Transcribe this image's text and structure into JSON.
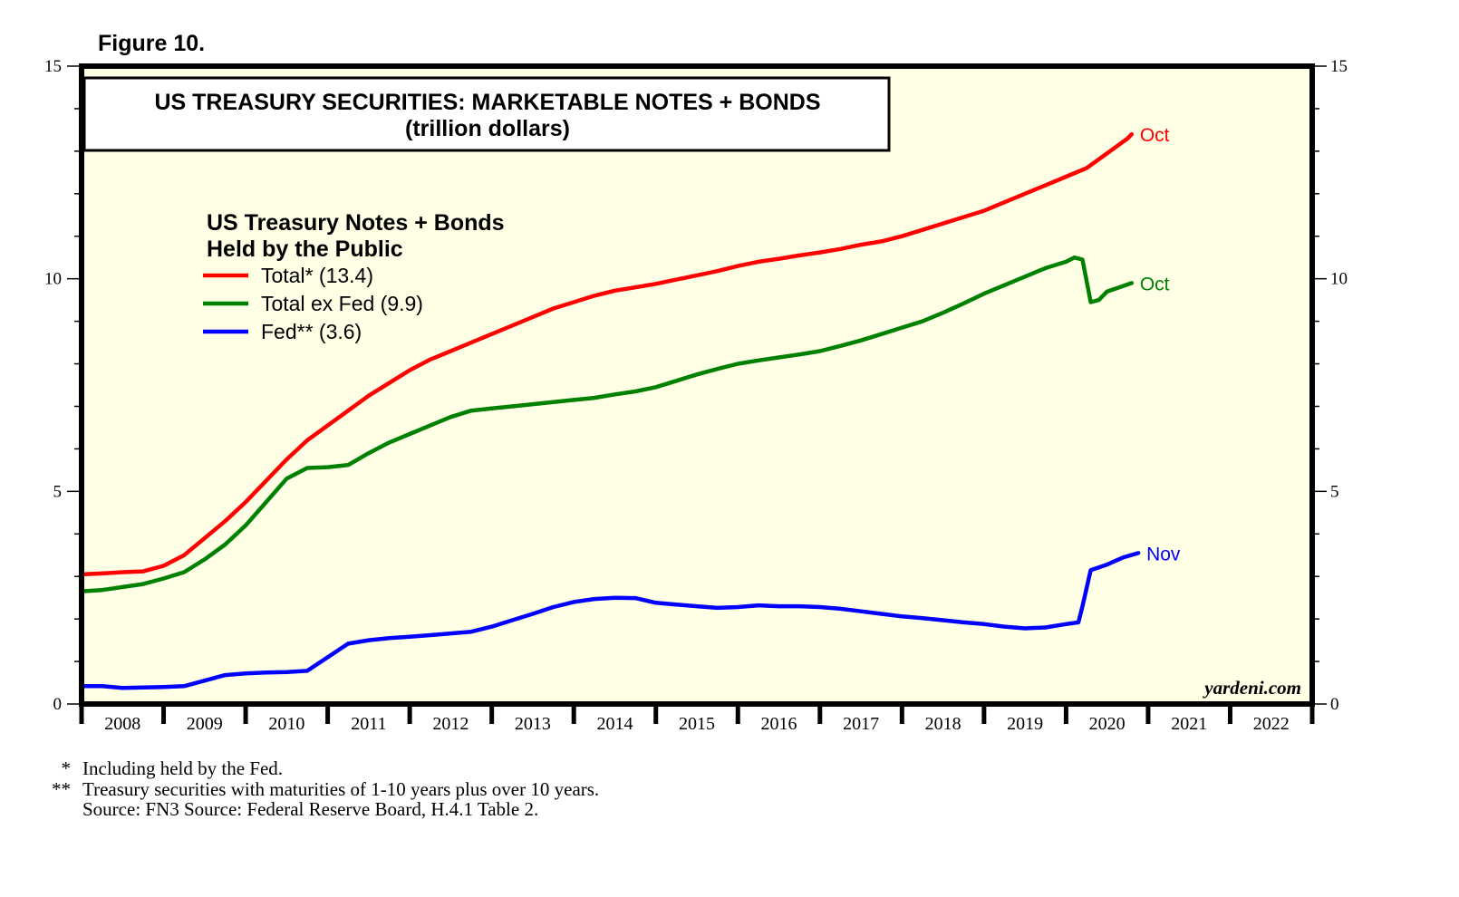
{
  "figure_label": "Figure 10.",
  "watermark": "yardeni.com",
  "footnotes": [
    {
      "marker": "*",
      "text": "Including held by the Fed."
    },
    {
      "marker": "**",
      "text": "Treasury securities with maturities of 1-10 years plus over 10 years."
    },
    {
      "marker": "",
      "text": "Source: FN3 Source: Federal Reserve Board, H.4.1 Table 2."
    }
  ],
  "chart_data": {
    "type": "line",
    "title": "US TREASURY SECURITIES: MARKETABLE NOTES + BONDS",
    "subtitle": "(trillion dollars)",
    "legend_title": [
      "US Treasury Notes + Bonds",
      "Held by the Public"
    ],
    "legend_position": "top-left",
    "xlabel": "",
    "ylabel": "",
    "xlim": [
      2008,
      2023
    ],
    "ylim": [
      0,
      15
    ],
    "y_ticks_major": [
      0,
      5,
      10,
      15
    ],
    "y_minor_step": 1,
    "x_tick_labels": [
      "2008",
      "2009",
      "2010",
      "2011",
      "2012",
      "2013",
      "2014",
      "2015",
      "2016",
      "2017",
      "2018",
      "2019",
      "2020",
      "2021",
      "2022"
    ],
    "grid": false,
    "background": "#ffffe6",
    "series": [
      {
        "name": "Total* (13.4)",
        "color": "#ff0000",
        "end_label": "Oct",
        "x": [
          2008.0,
          2008.25,
          2008.5,
          2008.75,
          2009.0,
          2009.25,
          2009.5,
          2009.75,
          2010.0,
          2010.25,
          2010.5,
          2010.75,
          2011.0,
          2011.25,
          2011.5,
          2011.75,
          2012.0,
          2012.25,
          2012.5,
          2012.75,
          2013.0,
          2013.25,
          2013.5,
          2013.75,
          2014.0,
          2014.25,
          2014.5,
          2014.75,
          2015.0,
          2015.25,
          2015.5,
          2015.75,
          2016.0,
          2016.25,
          2016.5,
          2016.75,
          2017.0,
          2017.25,
          2017.5,
          2017.75,
          2018.0,
          2018.25,
          2018.5,
          2018.75,
          2019.0,
          2019.25,
          2019.5,
          2019.75,
          2020.0,
          2020.25,
          2020.5,
          2020.75,
          2020.8
        ],
        "values": [
          3.05,
          3.07,
          3.1,
          3.12,
          3.25,
          3.5,
          3.9,
          4.3,
          4.75,
          5.25,
          5.75,
          6.2,
          6.55,
          6.9,
          7.25,
          7.55,
          7.85,
          8.1,
          8.3,
          8.5,
          8.7,
          8.9,
          9.1,
          9.3,
          9.45,
          9.6,
          9.72,
          9.8,
          9.88,
          9.98,
          10.08,
          10.18,
          10.3,
          10.4,
          10.47,
          10.55,
          10.62,
          10.7,
          10.8,
          10.88,
          11.0,
          11.15,
          11.3,
          11.45,
          11.6,
          11.8,
          12.0,
          12.2,
          12.4,
          12.6,
          12.95,
          13.3,
          13.4
        ]
      },
      {
        "name": "Total ex Fed (9.9)",
        "color": "#008000",
        "end_label": "Oct",
        "x": [
          2008.0,
          2008.25,
          2008.5,
          2008.75,
          2009.0,
          2009.25,
          2009.5,
          2009.75,
          2010.0,
          2010.25,
          2010.5,
          2010.75,
          2011.0,
          2011.25,
          2011.5,
          2011.75,
          2012.0,
          2012.25,
          2012.5,
          2012.75,
          2013.0,
          2013.25,
          2013.5,
          2013.75,
          2014.0,
          2014.25,
          2014.5,
          2014.75,
          2015.0,
          2015.25,
          2015.5,
          2015.75,
          2016.0,
          2016.25,
          2016.5,
          2016.75,
          2017.0,
          2017.25,
          2017.5,
          2017.75,
          2018.0,
          2018.25,
          2018.5,
          2018.75,
          2019.0,
          2019.25,
          2019.5,
          2019.75,
          2020.0,
          2020.1,
          2020.2,
          2020.3,
          2020.4,
          2020.5,
          2020.65,
          2020.8
        ],
        "values": [
          2.65,
          2.68,
          2.75,
          2.82,
          2.95,
          3.1,
          3.4,
          3.75,
          4.2,
          4.75,
          5.3,
          5.55,
          5.57,
          5.62,
          5.9,
          6.15,
          6.35,
          6.55,
          6.75,
          6.9,
          6.95,
          7.0,
          7.05,
          7.1,
          7.15,
          7.2,
          7.28,
          7.35,
          7.45,
          7.6,
          7.75,
          7.88,
          8.0,
          8.08,
          8.15,
          8.22,
          8.3,
          8.42,
          8.55,
          8.7,
          8.85,
          9.0,
          9.2,
          9.42,
          9.65,
          9.85,
          10.05,
          10.25,
          10.4,
          10.5,
          10.45,
          9.45,
          9.5,
          9.7,
          9.8,
          9.9
        ]
      },
      {
        "name": "Fed** (3.6)",
        "color": "#0000ff",
        "end_label": "Nov",
        "x": [
          2008.0,
          2008.25,
          2008.5,
          2008.75,
          2009.0,
          2009.25,
          2009.5,
          2009.75,
          2010.0,
          2010.25,
          2010.5,
          2010.75,
          2011.0,
          2011.25,
          2011.5,
          2011.75,
          2012.0,
          2012.25,
          2012.5,
          2012.75,
          2013.0,
          2013.25,
          2013.5,
          2013.75,
          2014.0,
          2014.25,
          2014.5,
          2014.75,
          2015.0,
          2015.25,
          2015.5,
          2015.75,
          2016.0,
          2016.25,
          2016.5,
          2016.75,
          2017.0,
          2017.25,
          2017.5,
          2017.75,
          2018.0,
          2018.25,
          2018.5,
          2018.75,
          2019.0,
          2019.25,
          2019.5,
          2019.75,
          2020.0,
          2020.15,
          2020.2,
          2020.3,
          2020.5,
          2020.7,
          2020.88
        ],
        "values": [
          0.42,
          0.42,
          0.38,
          0.39,
          0.4,
          0.42,
          0.55,
          0.68,
          0.72,
          0.74,
          0.75,
          0.78,
          1.1,
          1.42,
          1.5,
          1.55,
          1.58,
          1.62,
          1.66,
          1.7,
          1.82,
          1.97,
          2.12,
          2.28,
          2.4,
          2.47,
          2.5,
          2.49,
          2.38,
          2.34,
          2.3,
          2.26,
          2.28,
          2.32,
          2.3,
          2.3,
          2.28,
          2.24,
          2.18,
          2.12,
          2.06,
          2.02,
          1.97,
          1.92,
          1.88,
          1.82,
          1.78,
          1.8,
          1.88,
          1.92,
          2.3,
          3.15,
          3.28,
          3.45,
          3.55
        ]
      }
    ]
  }
}
